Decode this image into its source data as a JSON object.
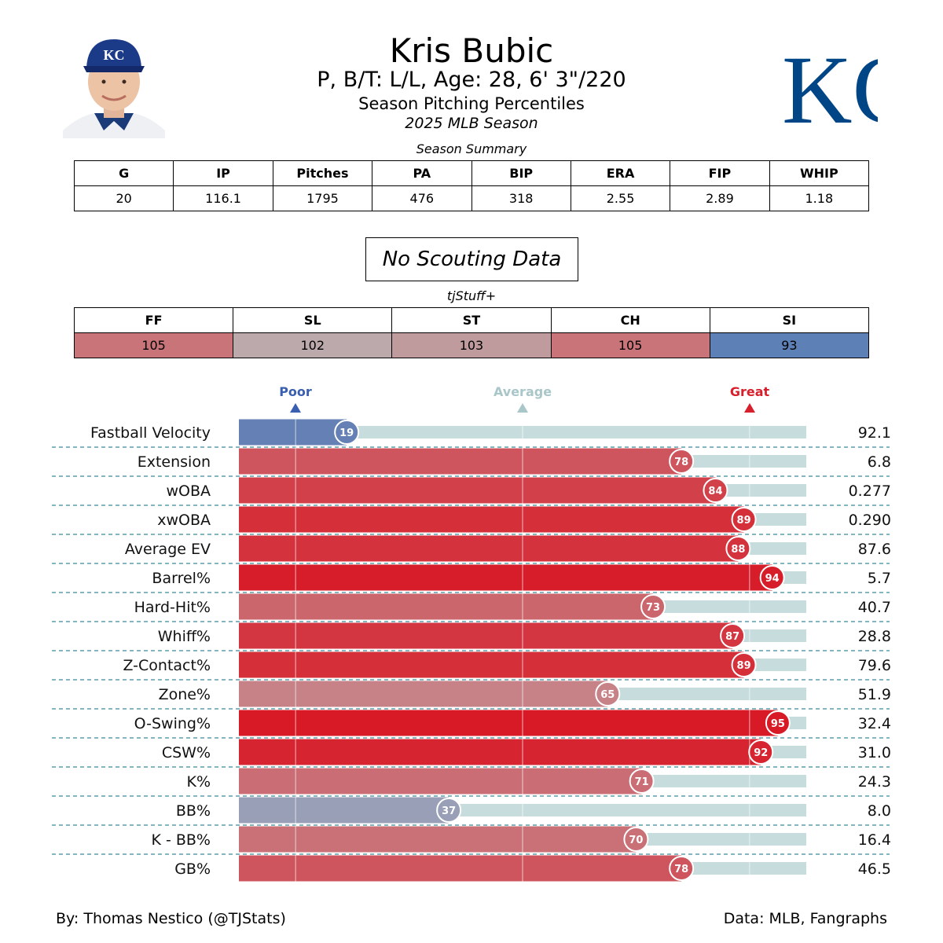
{
  "header": {
    "name": "Kris Bubic",
    "bio": "P, B/T: L/L, Age: 28, 6' 3\"/220",
    "subtitle": "Season Pitching Percentiles",
    "season": "2025 MLB Season"
  },
  "team_logo": {
    "text": "KC",
    "color": "#004687"
  },
  "summary": {
    "caption": "Season Summary",
    "headers": [
      "G",
      "IP",
      "Pitches",
      "PA",
      "BIP",
      "ERA",
      "FIP",
      "WHIP"
    ],
    "values": [
      "20",
      "116.1",
      "1795",
      "476",
      "318",
      "2.55",
      "2.89",
      "1.18"
    ]
  },
  "scouting": {
    "label": "No Scouting Data"
  },
  "tjstuff": {
    "caption": "tjStuff+",
    "headers": [
      "FF",
      "SL",
      "ST",
      "CH",
      "SI"
    ],
    "values": [
      "105",
      "102",
      "103",
      "105",
      "93"
    ],
    "colors": [
      "#c97479",
      "#bca9ab",
      "#c09b9e",
      "#c97479",
      "#5d80b6"
    ]
  },
  "scale": {
    "poor": "Poor",
    "average": "Average",
    "great": "Great",
    "poor_color": "#3a5fb0",
    "average_color": "#a9c6c8",
    "great_color": "#d7202c"
  },
  "chart_data": {
    "type": "bar",
    "orientation": "horizontal",
    "xlim": [
      0,
      100
    ],
    "categories": [
      "Fastball Velocity",
      "Extension",
      "wOBA",
      "xwOBA",
      "Average EV",
      "Barrel%",
      "Hard-Hit%",
      "Whiff%",
      "Z-Contact%",
      "Zone%",
      "O-Swing%",
      "CSW%",
      "K%",
      "BB%",
      "K - BB%",
      "GB%"
    ],
    "percentiles": [
      19,
      78,
      84,
      89,
      88,
      94,
      73,
      87,
      89,
      65,
      95,
      92,
      71,
      37,
      70,
      78
    ],
    "stat_values": [
      "92.1",
      "6.8",
      "0.277",
      "0.290",
      "87.6",
      "5.7",
      "40.7",
      "28.8",
      "79.6",
      "51.9",
      "32.4",
      "31.0",
      "24.3",
      "8.0",
      "16.4",
      "46.5"
    ],
    "reference_lines": [
      10,
      50,
      90
    ]
  },
  "footer": {
    "left": "By: Thomas Nestico (@TJStats)",
    "right": "Data: MLB, Fangraphs"
  }
}
